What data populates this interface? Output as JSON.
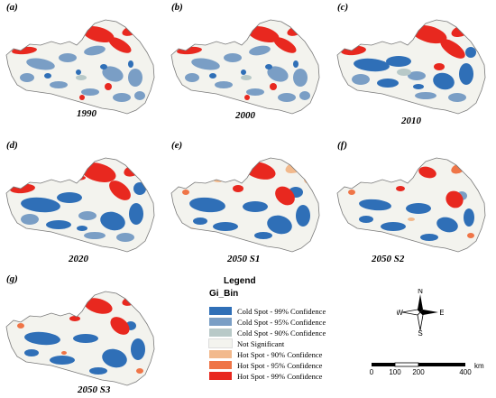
{
  "colors": {
    "cold99": "#2f6fb7",
    "cold95": "#7a9ec5",
    "cold90": "#b8c9c8",
    "notsig": "#f3f3ee",
    "hot90": "#f2b98c",
    "hot95": "#ef7547",
    "hot99": "#e8281f",
    "outline": "#7a7a7a"
  },
  "panels": [
    {
      "label": "(a)",
      "title": "1990"
    },
    {
      "label": "(b)",
      "title": "2000"
    },
    {
      "label": "(c)",
      "title": "2010"
    },
    {
      "label": "(d)",
      "title": "2020"
    },
    {
      "label": "(e)",
      "title": "2050 S1"
    },
    {
      "label": "(f)",
      "title": "2050 S2"
    },
    {
      "label": "(g)",
      "title": "2050 S3"
    }
  ],
  "legend": {
    "title": "Legend",
    "field": "Gi_Bin",
    "items": [
      {
        "label": "Cold Spot - 99% Confidence",
        "color": "#2f6fb7"
      },
      {
        "label": "Cold Spot - 95% Confidence",
        "color": "#7a9ec5"
      },
      {
        "label": "Cold Spot - 90% Confidence",
        "color": "#b8c9c8"
      },
      {
        "label": "Not Significant",
        "color": "#f3f3ee"
      },
      {
        "label": "Hot Spot - 90% Confidence",
        "color": "#f2b98c"
      },
      {
        "label": "Hot Spot - 95% Confidence",
        "color": "#ef7547"
      },
      {
        "label": "Hot Spot - 99% Confidence",
        "color": "#e8281f"
      }
    ]
  },
  "compass": {
    "n": "N",
    "s": "S",
    "e": "E",
    "w": "W"
  },
  "scale": {
    "ticks": [
      "0",
      "100",
      "200",
      "400"
    ],
    "unit": "km"
  }
}
